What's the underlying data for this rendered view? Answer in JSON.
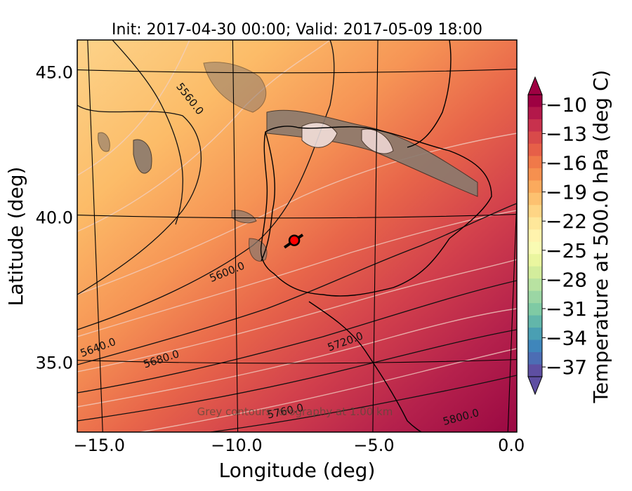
{
  "chart_data": {
    "type": "heatmap",
    "title": "Init: 2017-04-30 00:00; Valid: 2017-05-09 18:00",
    "xlabel": "Longitude (deg)",
    "ylabel": "Latitude (deg)",
    "xlim": [
      -15.8,
      0.2
    ],
    "ylim": [
      32.6,
      46.1
    ],
    "xticks": [
      -15.0,
      -10.0,
      -5.0,
      0.0
    ],
    "xtick_labels": [
      "−15.0",
      "−10.0",
      "−5.0",
      "0.0"
    ],
    "yticks": [
      35.0,
      40.0,
      45.0
    ],
    "ytick_labels": [
      "35.0",
      "40.0",
      "45.0"
    ],
    "field": {
      "variable": "Temperature at 500.0 hPa (deg C)",
      "colormap": "Spectral_r",
      "range": [
        -38,
        -9
      ],
      "gradient_description": "warmest (~-11) southeast, coolest (~-21) northwest"
    },
    "colorbar": {
      "label": "Temperature at 500.0 hPa (deg C)",
      "ticks": [
        -10,
        -13,
        -16,
        -19,
        -22,
        -25,
        -28,
        -31,
        -34,
        -37
      ],
      "tick_labels": [
        "−10",
        "−13",
        "−16",
        "−19",
        "−22",
        "−25",
        "−28",
        "−31",
        "−34",
        "−37"
      ],
      "colors_top_to_bottom": [
        "#9e0142",
        "#b3184a",
        "#c8314d",
        "#d84a4a",
        "#e65f48",
        "#f07949",
        "#f6904f",
        "#fbaa5d",
        "#fdc170",
        "#fed585",
        "#fee79a",
        "#fff3ad",
        "#f9fbb3",
        "#eaf69f",
        "#d3ed9c",
        "#b8e2a1",
        "#9bd6a4",
        "#7fcaa4",
        "#62b6aa",
        "#4a9fb3",
        "#3f86bb",
        "#4c6db4",
        "#5e4fa2"
      ]
    },
    "contour_labels": [
      {
        "value": "5560.0",
        "lon": -11.8,
        "lat": 44.0,
        "angle": 52
      },
      {
        "value": "5600.0",
        "lon": -10.3,
        "lat": 38.0,
        "angle": -22
      },
      {
        "value": "5640.0",
        "lon": -15.0,
        "lat": 35.4,
        "angle": -20
      },
      {
        "value": "5680.0",
        "lon": -12.7,
        "lat": 35.0,
        "angle": -18
      },
      {
        "value": "5720.0",
        "lon": -6.0,
        "lat": 35.6,
        "angle": -20
      },
      {
        "value": "5760.0",
        "lon": -8.2,
        "lat": 33.2,
        "angle": -12
      },
      {
        "value": "5800.0",
        "lon": -1.8,
        "lat": 33.0,
        "angle": -15
      }
    ],
    "marker": {
      "lon": -7.9,
      "lat": 39.2,
      "color": "#ff0000"
    },
    "annotation": "Grey contours: orography at 1.00 km"
  }
}
